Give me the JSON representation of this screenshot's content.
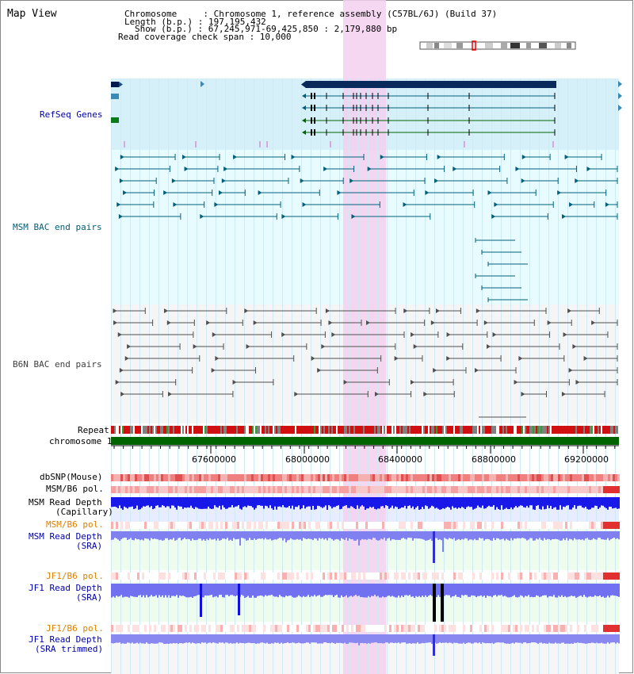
{
  "view_title": "Map View",
  "header": {
    "chromosome": "Chromosome     : Chromosome 1, reference assembly (C57BL/6J) (Build 37)",
    "length": "Length (b.p.) : 197,195,432",
    "show": "Show (b.p.) : 67,245,971-69,425,850 : 2,179,880 bp",
    "coverage": "Read coverage check span : 10,000"
  },
  "tracks": {
    "refseq": {
      "label": "RefSeq Genes",
      "color": "#0000aa"
    },
    "msm_bac": {
      "label": "MSM BAC end pairs",
      "color": "#00607a"
    },
    "b6n_bac": {
      "label": "B6N BAC end pairs",
      "color": "#404040"
    },
    "repeat": {
      "label": "Repeat"
    },
    "chromosome": {
      "label": "chromosome 1"
    },
    "dbsnp": {
      "label": "dbSNP(Mouse)"
    },
    "msm_b6_pol_1": {
      "label": "MSM/B6 pol."
    },
    "msm_depth_cap": {
      "label1": "MSM Read Depth",
      "label2": "(Capillary)"
    },
    "msm_b6_pol_2": {
      "label": "MSM/B6 pol.",
      "color": "#e08000"
    },
    "msm_depth_sra": {
      "label1": "MSM Read Depth",
      "label2": "(SRA)",
      "color": "#0000aa"
    },
    "jf1_b6_pol_1": {
      "label": "JF1/B6 pol.",
      "color": "#e08000"
    },
    "jf1_depth_sra": {
      "label1": "JF1 Read Depth",
      "label2": "(SRA)",
      "color": "#0000aa"
    },
    "jf1_b6_pol_2": {
      "label": "JF1/B6 pol.",
      "color": "#e08000"
    },
    "jf1_depth_trim": {
      "label1": "JF1 Read Depth",
      "label2": "(SRA trimmed)",
      "color": "#0000aa"
    }
  },
  "axis": {
    "ticks": [
      "67600000",
      "68000000",
      "68400000",
      "68800000",
      "69200000"
    ]
  },
  "colors": {
    "highlight": "#f5d0f0",
    "refseq_bg": "#d6f0fa",
    "track_bg": "#e8fbff",
    "chromosome_bar": "#006400",
    "depth_blue": "#1010e0",
    "depth_light": "#7070f0",
    "pol_red": "#f07070"
  }
}
